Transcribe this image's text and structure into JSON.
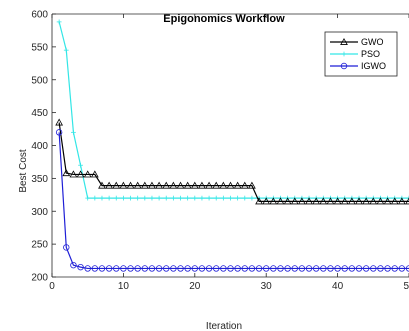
{
  "chart_data": {
    "type": "line",
    "title": "Epigonomics Workflow",
    "xlabel": "Iteration",
    "ylabel": "Best Cost",
    "xlim": [
      0,
      50
    ],
    "ylim": [
      200,
      600
    ],
    "xticks": [
      0,
      10,
      20,
      30,
      40,
      50
    ],
    "yticks": [
      200,
      250,
      300,
      350,
      400,
      450,
      500,
      550,
      600
    ],
    "xtick_labels": [
      "0",
      "10",
      "20",
      "30",
      "40",
      "50"
    ],
    "ytick_labels": [
      "200",
      "250",
      "300",
      "350",
      "400",
      "450",
      "500",
      "550",
      "600"
    ],
    "grid": false,
    "legend_position": "top-right",
    "series": [
      {
        "name": "GWO",
        "color": "#000000",
        "marker": "triangle",
        "x": [
          1,
          2,
          3,
          4,
          5,
          6,
          7,
          8,
          9,
          10,
          11,
          12,
          13,
          14,
          15,
          16,
          17,
          18,
          19,
          20,
          21,
          22,
          23,
          24,
          25,
          26,
          27,
          28,
          29,
          30,
          31,
          32,
          33,
          34,
          35,
          36,
          37,
          38,
          39,
          40,
          41,
          42,
          43,
          44,
          45,
          46,
          47,
          48,
          49,
          50
        ],
        "y": [
          435,
          358,
          356,
          356,
          356,
          356,
          339,
          339,
          339,
          339,
          339,
          339,
          339,
          339,
          339,
          339,
          339,
          339,
          339,
          339,
          339,
          339,
          339,
          339,
          339,
          339,
          339,
          339,
          315,
          315,
          315,
          315,
          315,
          315,
          315,
          315,
          315,
          315,
          315,
          315,
          315,
          315,
          315,
          315,
          315,
          315,
          315,
          315,
          315,
          315
        ]
      },
      {
        "name": "PSO",
        "color": "#33e6e6",
        "marker": "plus",
        "x": [
          1,
          2,
          3,
          4,
          5,
          6,
          7,
          8,
          9,
          10,
          11,
          12,
          13,
          14,
          15,
          16,
          17,
          18,
          19,
          20,
          21,
          22,
          23,
          24,
          25,
          26,
          27,
          28,
          29,
          30,
          31,
          32,
          33,
          34,
          35,
          36,
          37,
          38,
          39,
          40,
          41,
          42,
          43,
          44,
          45,
          46,
          47,
          48,
          49,
          50
        ],
        "y": [
          588,
          545,
          420,
          370,
          320,
          320,
          320,
          320,
          320,
          320,
          320,
          320,
          320,
          320,
          320,
          320,
          320,
          320,
          320,
          320,
          320,
          320,
          320,
          320,
          320,
          320,
          320,
          320,
          320,
          320,
          320,
          320,
          320,
          320,
          320,
          320,
          320,
          320,
          320,
          320,
          320,
          320,
          320,
          320,
          320,
          320,
          320,
          320,
          320,
          320
        ]
      },
      {
        "name": "IGWO",
        "color": "#1f1fd6",
        "marker": "circle",
        "x": [
          1,
          2,
          3,
          4,
          5,
          6,
          7,
          8,
          9,
          10,
          11,
          12,
          13,
          14,
          15,
          16,
          17,
          18,
          19,
          20,
          21,
          22,
          23,
          24,
          25,
          26,
          27,
          28,
          29,
          30,
          31,
          32,
          33,
          34,
          35,
          36,
          37,
          38,
          39,
          40,
          41,
          42,
          43,
          44,
          45,
          46,
          47,
          48,
          49,
          50
        ],
        "y": [
          420,
          245,
          218,
          215,
          213,
          213,
          213,
          213,
          213,
          213,
          213,
          213,
          213,
          213,
          213,
          213,
          213,
          213,
          213,
          213,
          213,
          213,
          213,
          213,
          213,
          213,
          213,
          213,
          213,
          213,
          213,
          213,
          213,
          213,
          213,
          213,
          213,
          213,
          213,
          213,
          213,
          213,
          213,
          213,
          213,
          213,
          213,
          213,
          213,
          213
        ]
      }
    ]
  }
}
